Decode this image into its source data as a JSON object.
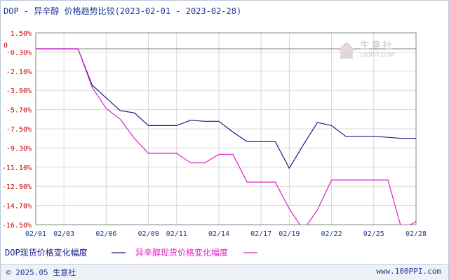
{
  "header": {
    "title": "DOP - 异辛醇 价格趋势比较(2023-02-01 - 2023-02-28)"
  },
  "watermark": {
    "name": "生意社",
    "url": "100PPI.COM"
  },
  "footer": {
    "copyright": "© 2025.05 生意社",
    "url": "www.100PPI.com"
  },
  "colors": {
    "dop": "#1a1a8c",
    "octanol": "#e020c8",
    "axis": "#888888",
    "grid": "#d8d8d8",
    "ytick": "#cc0000",
    "xtick": "#1f3a93"
  },
  "chart_data": {
    "type": "line",
    "title": "DOP - 异辛醇 价格趋势比较(2023-02-01 - 2023-02-28)",
    "xlabel": "",
    "ylabel": "",
    "ylim": [
      -16.5,
      1.5
    ],
    "y_ticks": [
      "1.50%",
      "0",
      "-0.30%",
      "-2.10%",
      "-3.90%",
      "-5.70%",
      "-7.50%",
      "-9.30%",
      "-11.10%",
      "-12.90%",
      "-14.70%",
      "-16.50%"
    ],
    "y_tick_values": [
      1.5,
      0,
      -0.3,
      -2.1,
      -3.9,
      -5.7,
      -7.5,
      -9.3,
      -11.1,
      -12.9,
      -14.7,
      -16.5
    ],
    "x_ticks": [
      "02/01",
      "02/03",
      "02/06",
      "02/09",
      "02/11",
      "02/14",
      "02/17",
      "02/19",
      "02/22",
      "02/25",
      "02/28"
    ],
    "x_domain": [
      "2023-02-01",
      "2023-02-28"
    ],
    "grid": true,
    "legend": "bottom-left",
    "series": [
      {
        "name": "DOP现货价格变化幅度",
        "color": "#1a1a8c",
        "points": [
          [
            "2023-02-01",
            0.0
          ],
          [
            "2023-02-02",
            0.0
          ],
          [
            "2023-02-03",
            0.0
          ],
          [
            "2023-02-04",
            0.0
          ],
          [
            "2023-02-05",
            -3.4
          ],
          [
            "2023-02-06",
            -4.6
          ],
          [
            "2023-02-07",
            -5.8
          ],
          [
            "2023-02-08",
            -6.0
          ],
          [
            "2023-02-09",
            -7.2
          ],
          [
            "2023-02-10",
            -7.2
          ],
          [
            "2023-02-11",
            -7.2
          ],
          [
            "2023-02-12",
            -6.7
          ],
          [
            "2023-02-13",
            -6.8
          ],
          [
            "2023-02-14",
            -6.8
          ],
          [
            "2023-02-15",
            -7.8
          ],
          [
            "2023-02-16",
            -8.7
          ],
          [
            "2023-02-17",
            -8.7
          ],
          [
            "2023-02-18",
            -8.7
          ],
          [
            "2023-02-19",
            -11.2
          ],
          [
            "2023-02-20",
            -9.0
          ],
          [
            "2023-02-21",
            -6.9
          ],
          [
            "2023-02-22",
            -7.2
          ],
          [
            "2023-02-23",
            -8.2
          ],
          [
            "2023-02-24",
            -8.2
          ],
          [
            "2023-02-25",
            -8.2
          ],
          [
            "2023-02-26",
            -8.3
          ],
          [
            "2023-02-27",
            -8.4
          ],
          [
            "2023-02-28",
            -8.4
          ]
        ]
      },
      {
        "name": "异辛醇现货价格变化幅度",
        "color": "#e020c8",
        "points": [
          [
            "2023-02-01",
            0.0
          ],
          [
            "2023-02-02",
            0.0
          ],
          [
            "2023-02-03",
            0.0
          ],
          [
            "2023-02-04",
            0.0
          ],
          [
            "2023-02-05",
            -3.6
          ],
          [
            "2023-02-06",
            -5.6
          ],
          [
            "2023-02-07",
            -6.6
          ],
          [
            "2023-02-08",
            -8.4
          ],
          [
            "2023-02-09",
            -9.8
          ],
          [
            "2023-02-10",
            -9.8
          ],
          [
            "2023-02-11",
            -9.8
          ],
          [
            "2023-02-12",
            -10.7
          ],
          [
            "2023-02-13",
            -10.7
          ],
          [
            "2023-02-14",
            -9.9
          ],
          [
            "2023-02-15",
            -9.9
          ],
          [
            "2023-02-16",
            -12.5
          ],
          [
            "2023-02-17",
            -12.5
          ],
          [
            "2023-02-18",
            -12.5
          ],
          [
            "2023-02-19",
            -15.0
          ],
          [
            "2023-02-20",
            -17.0
          ],
          [
            "2023-02-21",
            -15.1
          ],
          [
            "2023-02-22",
            -12.3
          ],
          [
            "2023-02-23",
            -12.3
          ],
          [
            "2023-02-24",
            -12.3
          ],
          [
            "2023-02-25",
            -12.3
          ],
          [
            "2023-02-26",
            -12.3
          ],
          [
            "2023-02-27",
            -17.0
          ],
          [
            "2023-02-28",
            -16.2
          ]
        ]
      }
    ]
  }
}
